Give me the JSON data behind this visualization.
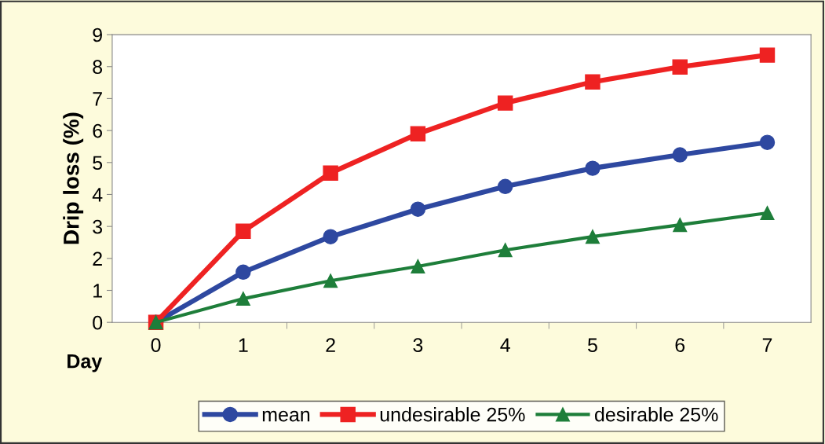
{
  "chart_data": {
    "type": "line",
    "xlabel": "Day",
    "ylabel": "Drip loss (%)",
    "categories": [
      "0",
      "1",
      "2",
      "3",
      "4",
      "5",
      "6",
      "7"
    ],
    "series": [
      {
        "name": "mean",
        "color": "#2e48a0",
        "marker": "circle",
        "values": [
          0,
          1.57,
          2.68,
          3.54,
          4.25,
          4.82,
          5.24,
          5.63
        ]
      },
      {
        "name": "undesirable 25%",
        "color": "#ee2222",
        "marker": "square",
        "values": [
          0,
          2.85,
          4.67,
          5.9,
          6.86,
          7.52,
          7.99,
          8.36
        ]
      },
      {
        "name": "desirable 25%",
        "color": "#1e7e3a",
        "marker": "triangle",
        "values": [
          0,
          0.74,
          1.3,
          1.75,
          2.26,
          2.68,
          3.05,
          3.42
        ]
      }
    ],
    "ylim": [
      0,
      9
    ],
    "yticks": [
      0,
      1,
      2,
      3,
      4,
      5,
      6,
      7,
      8,
      9
    ],
    "grid": false,
    "legend": "bottom",
    "line_style": "solid"
  }
}
